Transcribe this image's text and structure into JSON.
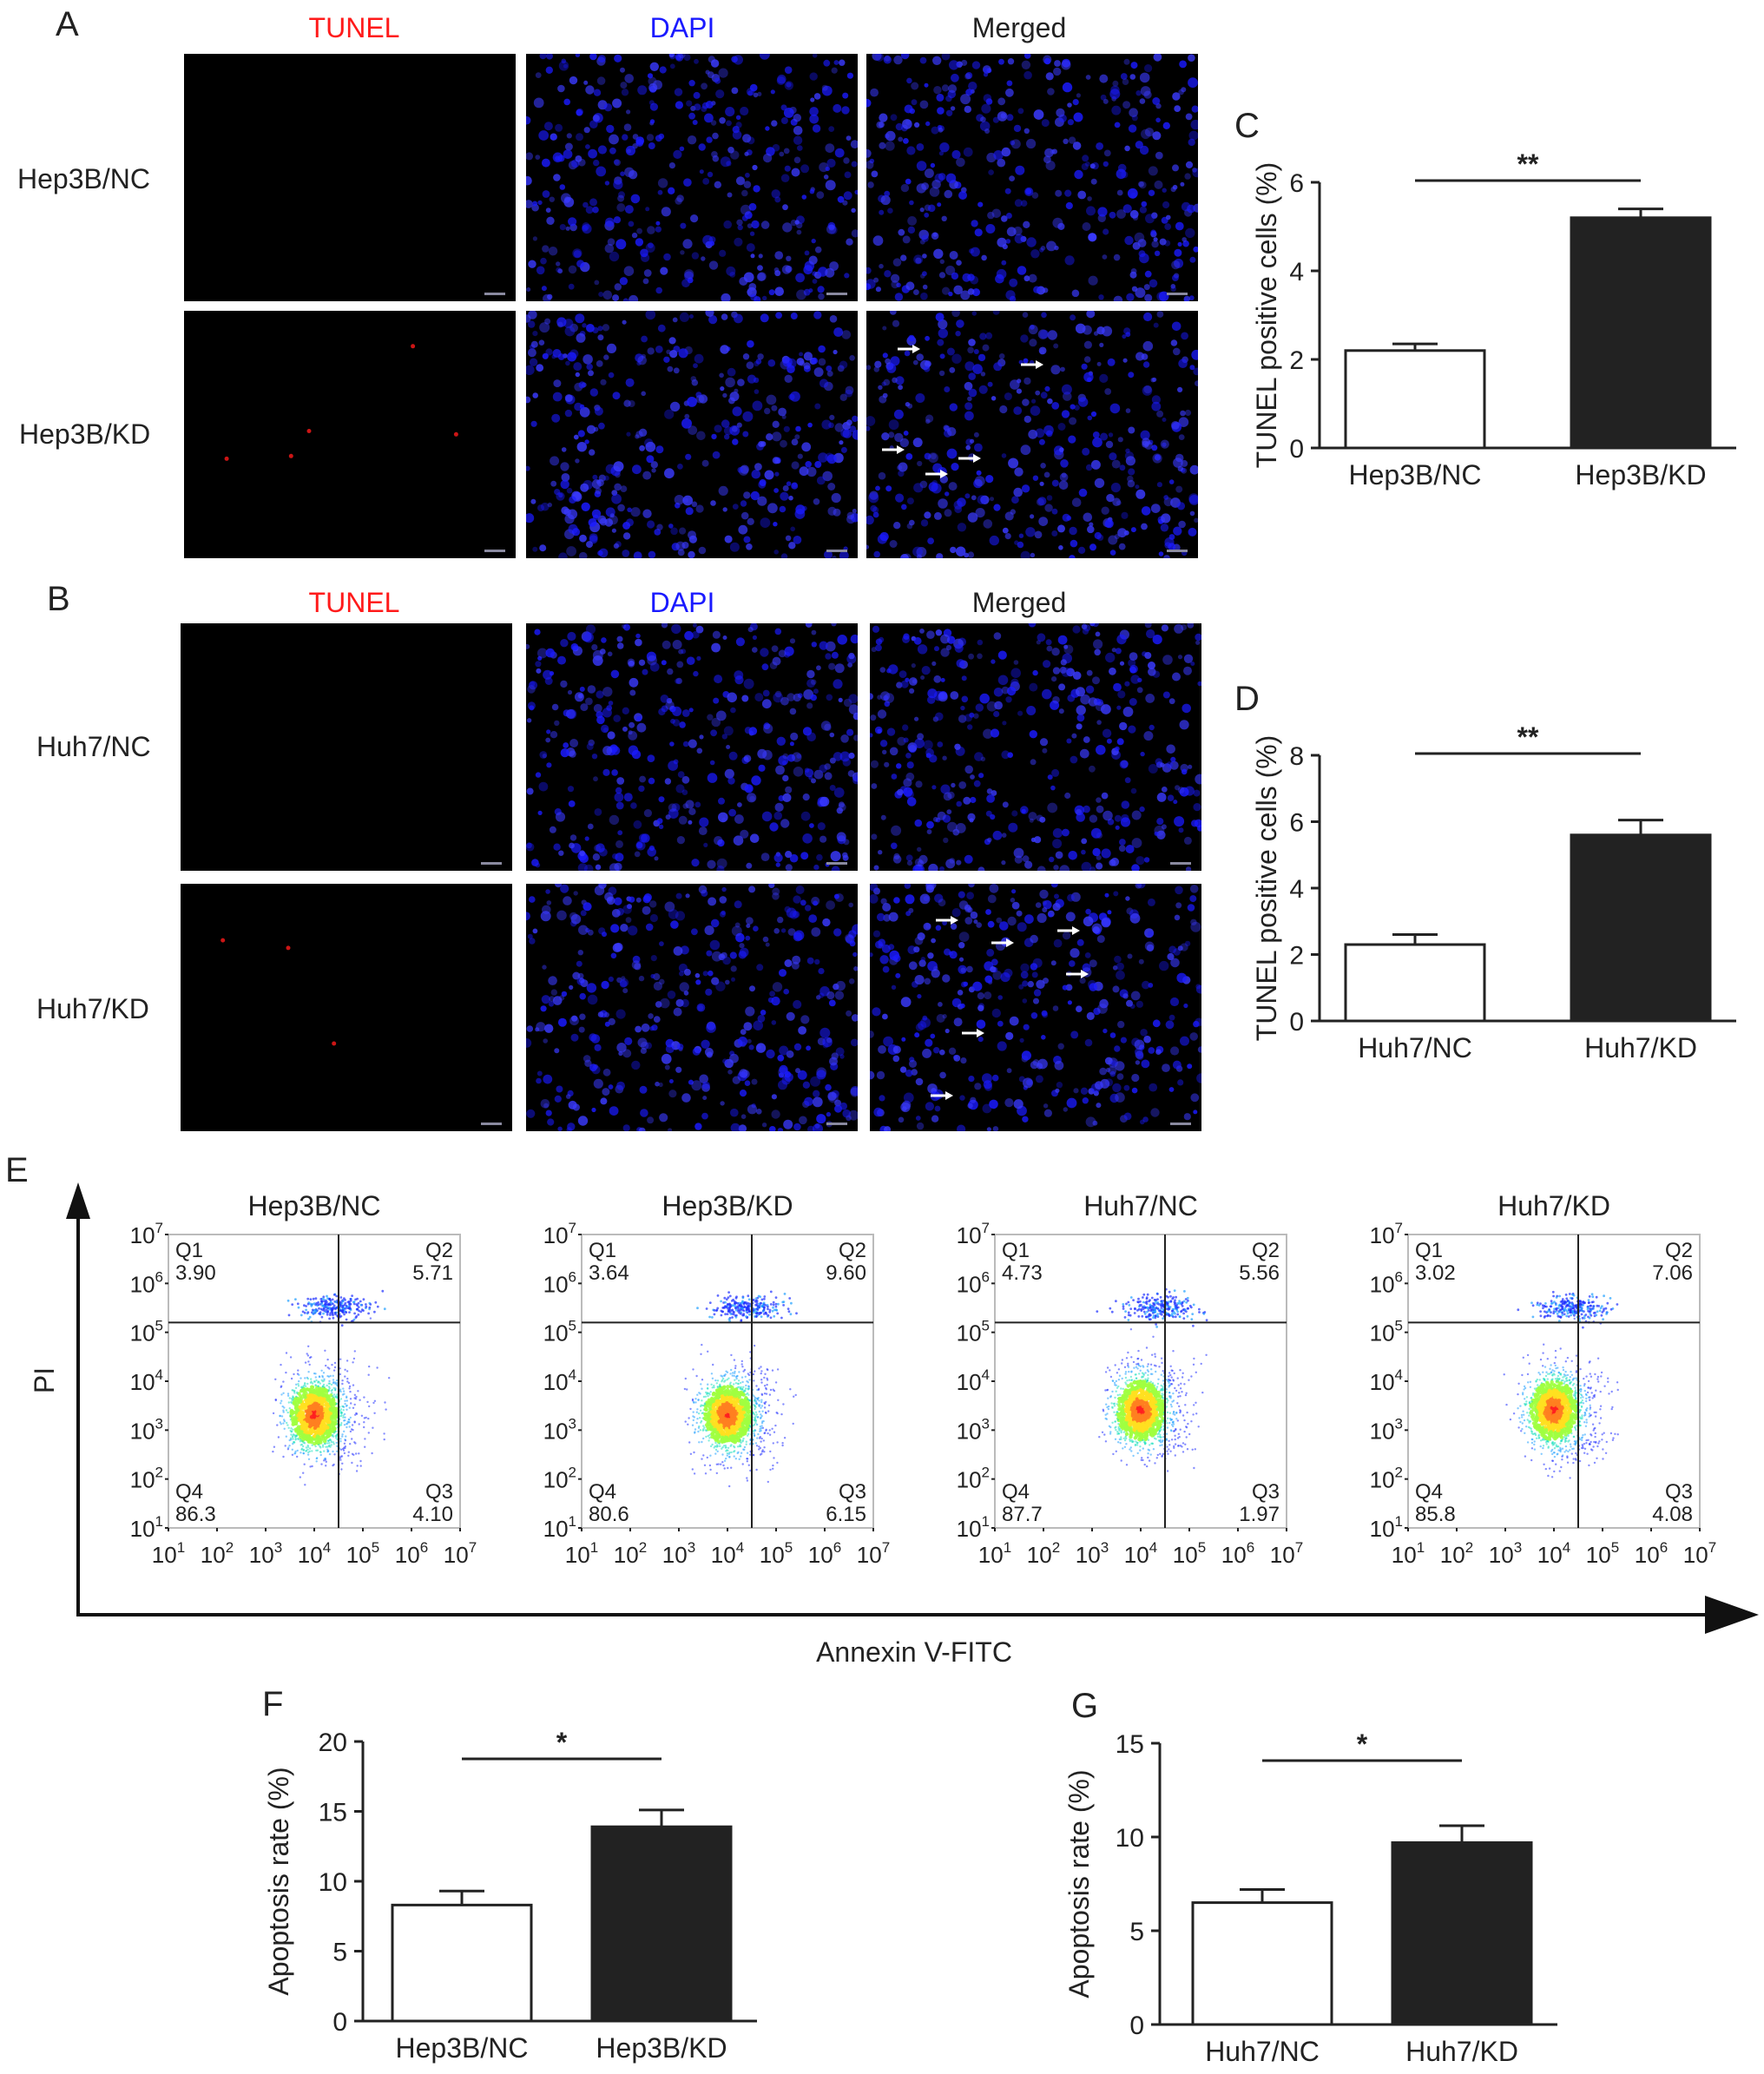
{
  "panels": {
    "A": {
      "letter": "A",
      "headers": [
        "TUNEL",
        "DAPI",
        "Merged"
      ],
      "rows": [
        "Hep3B/NC",
        "Hep3B/KD"
      ]
    },
    "B": {
      "letter": "B",
      "headers": [
        "TUNEL",
        "DAPI",
        "Merged"
      ],
      "rows": [
        "Huh7/NC",
        "Huh7/KD"
      ]
    },
    "E": {
      "letter": "E",
      "ylabel": "PI",
      "xlabel": "Annexin V-FITC"
    }
  },
  "colors": {
    "tunel": "#ff1a1a",
    "dapi": "#1a1aff",
    "merged": "#222222",
    "kd_bar": "#222222",
    "nc_bar": "#ffffff"
  },
  "chart_data": [
    {
      "id": "C",
      "letter": "C",
      "type": "bar",
      "categories": [
        "Hep3B/NC",
        "Hep3B/KD"
      ],
      "values": [
        2.2,
        5.2
      ],
      "errors": [
        0.15,
        0.2
      ],
      "ylabel": "TUNEL positive cells (%)",
      "ylim": [
        0,
        6
      ],
      "yticks": [
        0,
        2,
        4,
        6
      ],
      "significance": "**"
    },
    {
      "id": "D",
      "letter": "D",
      "type": "bar",
      "categories": [
        "Huh7/NC",
        "Huh7/KD"
      ],
      "values": [
        2.3,
        5.6
      ],
      "errors": [
        0.3,
        0.45
      ],
      "ylabel": "TUNEL positive cells (%)",
      "ylim": [
        0,
        8
      ],
      "yticks": [
        0,
        2,
        4,
        6,
        8
      ],
      "significance": "**"
    },
    {
      "id": "F",
      "letter": "F",
      "type": "bar",
      "categories": [
        "Hep3B/NC",
        "Hep3B/KD"
      ],
      "values": [
        8.3,
        13.9
      ],
      "errors": [
        1.0,
        1.2
      ],
      "ylabel": "Apoptosis rate (%)",
      "ylim": [
        0,
        20
      ],
      "yticks": [
        0,
        5,
        10,
        15,
        20
      ],
      "significance": "*"
    },
    {
      "id": "G",
      "letter": "G",
      "type": "bar",
      "categories": [
        "Huh7/NC",
        "Huh7/KD"
      ],
      "values": [
        6.5,
        9.7
      ],
      "errors": [
        0.7,
        0.9
      ],
      "ylabel": "Apoptosis rate (%)",
      "ylim": [
        0,
        15
      ],
      "yticks": [
        0,
        5,
        10,
        15
      ],
      "significance": "*"
    },
    {
      "id": "E1",
      "type": "scatter",
      "title": "Hep3B/NC",
      "quadrants": {
        "Q1": "3.90",
        "Q2": "5.71",
        "Q3": "4.10",
        "Q4": "86.3"
      },
      "axis_ticks": [
        "10",
        "10",
        "10",
        "10",
        "10",
        "10",
        "10"
      ],
      "axis_exponents": [
        "1",
        "2",
        "3",
        "4",
        "5",
        "6",
        "7"
      ],
      "xlim_log10": [
        1,
        7
      ],
      "ylim_log10": [
        1,
        7
      ],
      "gate_x_log10": 4.5,
      "gate_y_log10": 5.2
    },
    {
      "id": "E2",
      "type": "scatter",
      "title": "Hep3B/KD",
      "quadrants": {
        "Q1": "3.64",
        "Q2": "9.60",
        "Q3": "6.15",
        "Q4": "80.6"
      },
      "axis_ticks": [
        "10",
        "10",
        "10",
        "10",
        "10",
        "10",
        "10"
      ],
      "axis_exponents": [
        "1",
        "2",
        "3",
        "4",
        "5",
        "6",
        "7"
      ],
      "xlim_log10": [
        1,
        7
      ],
      "ylim_log10": [
        1,
        7
      ],
      "gate_x_log10": 4.5,
      "gate_y_log10": 5.2
    },
    {
      "id": "E3",
      "type": "scatter",
      "title": "Huh7/NC",
      "quadrants": {
        "Q1": "4.73",
        "Q2": "5.56",
        "Q3": "1.97",
        "Q4": "87.7"
      },
      "axis_ticks": [
        "10",
        "10",
        "10",
        "10",
        "10",
        "10",
        "10"
      ],
      "axis_exponents": [
        "1",
        "2",
        "3",
        "4",
        "5",
        "6",
        "7"
      ],
      "xlim_log10": [
        1,
        7
      ],
      "ylim_log10": [
        1,
        7
      ],
      "gate_x_log10": 4.5,
      "gate_y_log10": 5.2
    },
    {
      "id": "E4",
      "type": "scatter",
      "title": "Huh7/KD",
      "quadrants": {
        "Q1": "3.02",
        "Q2": "7.06",
        "Q3": "4.08",
        "Q4": "85.8"
      },
      "axis_ticks": [
        "10",
        "10",
        "10",
        "10",
        "10",
        "10",
        "10"
      ],
      "axis_exponents": [
        "1",
        "2",
        "3",
        "4",
        "5",
        "6",
        "7"
      ],
      "xlim_log10": [
        1,
        7
      ],
      "ylim_log10": [
        1,
        7
      ],
      "gate_x_log10": 4.5,
      "gate_y_log10": 5.2
    }
  ]
}
